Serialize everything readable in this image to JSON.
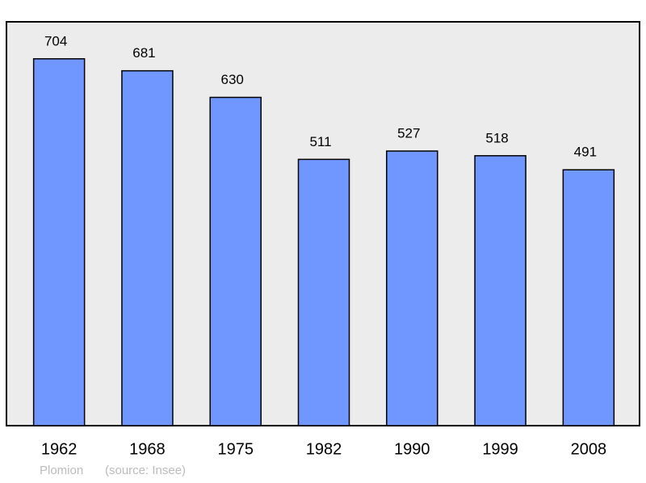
{
  "chart_data": {
    "type": "bar",
    "categories": [
      "1962",
      "1968",
      "1975",
      "1982",
      "1990",
      "1999",
      "2008"
    ],
    "values": [
      704,
      681,
      630,
      511,
      527,
      518,
      491
    ],
    "color": "#7097ff",
    "ylim": [
      0,
      775
    ],
    "place": "Plomion",
    "source": "(source: Insee)"
  }
}
